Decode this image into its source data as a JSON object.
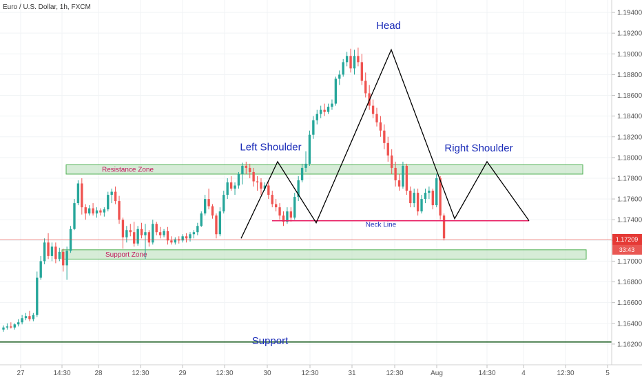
{
  "chart_data": {
    "type": "candlestick",
    "symbol": "Euro / U.S. Dollar, 1h, FXCM",
    "y_ticks": [
      "1.16200",
      "1.16400",
      "1.16600",
      "1.16800",
      "1.17000",
      "1.17200",
      "1.17400",
      "1.17600",
      "1.17800",
      "1.18000",
      "1.18200",
      "1.18400",
      "1.18600",
      "1.18800",
      "1.19000",
      "1.19200",
      "1.19400"
    ],
    "ylim": [
      1.16,
      1.1952
    ],
    "x_ticks": [
      {
        "label": "27",
        "x": 30
      },
      {
        "label": "14:30",
        "x": 90
      },
      {
        "label": "28",
        "x": 143
      },
      {
        "label": "12:30",
        "x": 204
      },
      {
        "label": "29",
        "x": 265
      },
      {
        "label": "12:30",
        "x": 326
      },
      {
        "label": "30",
        "x": 388
      },
      {
        "label": "12:30",
        "x": 450
      },
      {
        "label": "31",
        "x": 511
      },
      {
        "label": "12:30",
        "x": 573
      },
      {
        "label": "Aug",
        "x": 634
      },
      {
        "label": "14:30",
        "x": 707
      },
      {
        "label": "4",
        "x": 760
      },
      {
        "label": "12:30",
        "x": 821
      },
      {
        "label": "5",
        "x": 882
      }
    ],
    "last_price": {
      "value": 1.17209,
      "label": "1.17209",
      "countdown": "33:43",
      "color": "#e53935"
    },
    "colors": {
      "up": "#26a69a",
      "down": "#ef5350",
      "zone_fill": "#c8e6c9",
      "zone_stroke": "#4caf50",
      "neck": "#e91e63",
      "support_line": "#1b5e20",
      "pattern": "#000000",
      "annotation": "#1a2bb8"
    },
    "zones": [
      {
        "name": "resistance",
        "label": "Resistance Zone",
        "from": 1.1784,
        "to": 1.1793,
        "x1": 96,
        "x2": 846
      },
      {
        "name": "support",
        "label": "Support Zone",
        "from": 1.1702,
        "to": 1.1711,
        "x1": 90,
        "x2": 851
      }
    ],
    "neck_line": {
      "label": "Neck Line",
      "value": 1.1739,
      "x1": 395,
      "x2": 768
    },
    "support_line": {
      "label": "Support",
      "value": 1.1622
    },
    "pattern_points": [
      {
        "x": 350,
        "y": 1.1722
      },
      {
        "x": 403,
        "y": 1.1796
      },
      {
        "x": 459,
        "y": 1.1737
      },
      {
        "x": 568,
        "y": 1.1904
      },
      {
        "x": 660,
        "y": 1.1741
      },
      {
        "x": 707,
        "y": 1.1796
      },
      {
        "x": 768,
        "y": 1.1739
      }
    ],
    "annotations": [
      {
        "text": "Head",
        "x": 564,
        "y": 1.1924
      },
      {
        "text": "Left Shoulder",
        "x": 393,
        "y": 1.1807
      },
      {
        "text": "Right Shoulder",
        "x": 695,
        "y": 1.1806
      },
      {
        "text": "Support",
        "x": 392,
        "y": 1.162
      }
    ],
    "candles": {
      "x0": 5,
      "step": 5.42,
      "ohlc": [
        [
          1.1634,
          1.1638,
          1.1632,
          1.1636
        ],
        [
          1.1636,
          1.164,
          1.1634,
          1.1637
        ],
        [
          1.1637,
          1.1641,
          1.1635,
          1.1636
        ],
        [
          1.1636,
          1.164,
          1.1634,
          1.1639
        ],
        [
          1.1639,
          1.1644,
          1.1637,
          1.1641
        ],
        [
          1.1641,
          1.1648,
          1.1639,
          1.1645
        ],
        [
          1.1645,
          1.165,
          1.1643,
          1.1647
        ],
        [
          1.1647,
          1.1652,
          1.1642,
          1.1644
        ],
        [
          1.1644,
          1.165,
          1.1642,
          1.1648
        ],
        [
          1.1648,
          1.169,
          1.1646,
          1.1684
        ],
        [
          1.1684,
          1.1705,
          1.1682,
          1.17
        ],
        [
          1.17,
          1.1722,
          1.1697,
          1.1718
        ],
        [
          1.1718,
          1.1727,
          1.1702,
          1.1705
        ],
        [
          1.1705,
          1.1718,
          1.17,
          1.1714
        ],
        [
          1.1714,
          1.1718,
          1.1698,
          1.1702
        ],
        [
          1.1702,
          1.1713,
          1.17,
          1.1709
        ],
        [
          1.1709,
          1.1712,
          1.169,
          1.1696
        ],
        [
          1.1696,
          1.1714,
          1.1682,
          1.171
        ],
        [
          1.171,
          1.1734,
          1.1708,
          1.1731
        ],
        [
          1.1731,
          1.176,
          1.173,
          1.1756
        ],
        [
          1.1756,
          1.1778,
          1.1754,
          1.1775
        ],
        [
          1.1775,
          1.178,
          1.1745,
          1.1752
        ],
        [
          1.1752,
          1.1755,
          1.174,
          1.1746
        ],
        [
          1.1746,
          1.1754,
          1.1744,
          1.1751
        ],
        [
          1.1751,
          1.1756,
          1.1744,
          1.1746
        ],
        [
          1.1746,
          1.1752,
          1.1742,
          1.1749
        ],
        [
          1.1749,
          1.1751,
          1.1744,
          1.1747
        ],
        [
          1.1747,
          1.1752,
          1.1743,
          1.175
        ],
        [
          1.175,
          1.1767,
          1.1748,
          1.1764
        ],
        [
          1.1764,
          1.177,
          1.1756,
          1.1767
        ],
        [
          1.1767,
          1.1772,
          1.1755,
          1.1758
        ],
        [
          1.1758,
          1.1763,
          1.1736,
          1.174
        ],
        [
          1.174,
          1.1742,
          1.1712,
          1.1723
        ],
        [
          1.1723,
          1.1734,
          1.1718,
          1.173
        ],
        [
          1.173,
          1.1736,
          1.1724,
          1.1728
        ],
        [
          1.1728,
          1.1738,
          1.1714,
          1.1717
        ],
        [
          1.1717,
          1.1734,
          1.1715,
          1.1731
        ],
        [
          1.1731,
          1.1737,
          1.1722,
          1.1725
        ],
        [
          1.1725,
          1.1736,
          1.1702,
          1.1728
        ],
        [
          1.1728,
          1.173,
          1.1714,
          1.1718
        ],
        [
          1.1718,
          1.174,
          1.1716,
          1.1736
        ],
        [
          1.1736,
          1.1738,
          1.1725,
          1.1728
        ],
        [
          1.1728,
          1.1733,
          1.1722,
          1.1725
        ],
        [
          1.1725,
          1.1731,
          1.1723,
          1.1729
        ],
        [
          1.1729,
          1.1733,
          1.1716,
          1.172
        ],
        [
          1.172,
          1.1724,
          1.1716,
          1.1718
        ],
        [
          1.1718,
          1.1723,
          1.1716,
          1.1721
        ],
        [
          1.1721,
          1.1724,
          1.1717,
          1.172
        ],
        [
          1.172,
          1.1726,
          1.1718,
          1.1724
        ],
        [
          1.1724,
          1.1727,
          1.1718,
          1.1722
        ],
        [
          1.1722,
          1.1728,
          1.1719,
          1.1726
        ],
        [
          1.1726,
          1.173,
          1.1722,
          1.1728
        ],
        [
          1.1728,
          1.1737,
          1.1725,
          1.1734
        ],
        [
          1.1734,
          1.1748,
          1.1733,
          1.1746
        ],
        [
          1.1746,
          1.1764,
          1.1744,
          1.176
        ],
        [
          1.176,
          1.177,
          1.175,
          1.1753
        ],
        [
          1.1753,
          1.1755,
          1.1741,
          1.1744
        ],
        [
          1.1744,
          1.1746,
          1.1722,
          1.1726
        ],
        [
          1.1726,
          1.1752,
          1.1724,
          1.1748
        ],
        [
          1.1748,
          1.1768,
          1.1746,
          1.1764
        ],
        [
          1.1764,
          1.178,
          1.176,
          1.1776
        ],
        [
          1.1776,
          1.1782,
          1.1768,
          1.177
        ],
        [
          1.177,
          1.1776,
          1.1764,
          1.1773
        ],
        [
          1.1773,
          1.1786,
          1.177,
          1.1784
        ],
        [
          1.1784,
          1.1795,
          1.1774,
          1.1792
        ],
        [
          1.1792,
          1.1796,
          1.1784,
          1.179
        ],
        [
          1.179,
          1.1794,
          1.178,
          1.1786
        ],
        [
          1.1786,
          1.179,
          1.1772,
          1.1777
        ],
        [
          1.1777,
          1.1782,
          1.1768,
          1.1776
        ],
        [
          1.1776,
          1.178,
          1.1764,
          1.177
        ],
        [
          1.177,
          1.1776,
          1.1768,
          1.1773
        ],
        [
          1.1773,
          1.1776,
          1.176,
          1.1764
        ],
        [
          1.1764,
          1.1768,
          1.1752,
          1.1755
        ],
        [
          1.1755,
          1.176,
          1.1748,
          1.1752
        ],
        [
          1.1752,
          1.1756,
          1.174,
          1.1744
        ],
        [
          1.1744,
          1.1748,
          1.1734,
          1.1738
        ],
        [
          1.1738,
          1.1752,
          1.1736,
          1.1748
        ],
        [
          1.1748,
          1.1752,
          1.1738,
          1.1742
        ],
        [
          1.1742,
          1.1766,
          1.174,
          1.1762
        ],
        [
          1.1762,
          1.1782,
          1.1758,
          1.1778
        ],
        [
          1.1778,
          1.1794,
          1.1776,
          1.179
        ],
        [
          1.179,
          1.1806,
          1.1786,
          1.1794
        ],
        [
          1.1794,
          1.1826,
          1.1792,
          1.1822
        ],
        [
          1.1822,
          1.184,
          1.1818,
          1.1836
        ],
        [
          1.1836,
          1.1846,
          1.1832,
          1.1842
        ],
        [
          1.1842,
          1.185,
          1.1838,
          1.1846
        ],
        [
          1.1846,
          1.1852,
          1.184,
          1.1844
        ],
        [
          1.1844,
          1.1852,
          1.1842,
          1.1849
        ],
        [
          1.1849,
          1.1856,
          1.1846,
          1.1852
        ],
        [
          1.1852,
          1.1878,
          1.185,
          1.1876
        ],
        [
          1.1876,
          1.1884,
          1.187,
          1.188
        ],
        [
          1.188,
          1.1895,
          1.1878,
          1.1892
        ],
        [
          1.1892,
          1.1902,
          1.1888,
          1.1898
        ],
        [
          1.1898,
          1.1905,
          1.1882,
          1.1886
        ],
        [
          1.1886,
          1.1904,
          1.188,
          1.1898
        ],
        [
          1.1898,
          1.1906,
          1.1888,
          1.1892
        ],
        [
          1.1892,
          1.19,
          1.187,
          1.1874
        ],
        [
          1.1874,
          1.1882,
          1.1858,
          1.1862
        ],
        [
          1.1862,
          1.187,
          1.1846,
          1.185
        ],
        [
          1.185,
          1.1856,
          1.1838,
          1.1842
        ],
        [
          1.1842,
          1.1848,
          1.183,
          1.1834
        ],
        [
          1.1834,
          1.184,
          1.182,
          1.1826
        ],
        [
          1.1826,
          1.1832,
          1.1808,
          1.1814
        ],
        [
          1.1814,
          1.182,
          1.1796,
          1.1802
        ],
        [
          1.1802,
          1.1808,
          1.1784,
          1.179
        ],
        [
          1.179,
          1.1796,
          1.1772,
          1.1778
        ],
        [
          1.1778,
          1.1784,
          1.1768,
          1.1772
        ],
        [
          1.1772,
          1.1796,
          1.177,
          1.1792
        ],
        [
          1.1792,
          1.1794,
          1.1764,
          1.1768
        ],
        [
          1.1768,
          1.1772,
          1.1752,
          1.1756
        ],
        [
          1.1756,
          1.177,
          1.1752,
          1.1766
        ],
        [
          1.1766,
          1.177,
          1.1744,
          1.1748
        ],
        [
          1.1748,
          1.1764,
          1.1746,
          1.176
        ],
        [
          1.176,
          1.177,
          1.1756,
          1.1766
        ],
        [
          1.1766,
          1.1772,
          1.176,
          1.1768
        ],
        [
          1.1768,
          1.177,
          1.175,
          1.1754
        ],
        [
          1.1754,
          1.1784,
          1.1752,
          1.178
        ],
        [
          1.178,
          1.1782,
          1.174,
          1.1744
        ],
        [
          1.1744,
          1.1746,
          1.172,
          1.1722
        ]
      ]
    }
  }
}
